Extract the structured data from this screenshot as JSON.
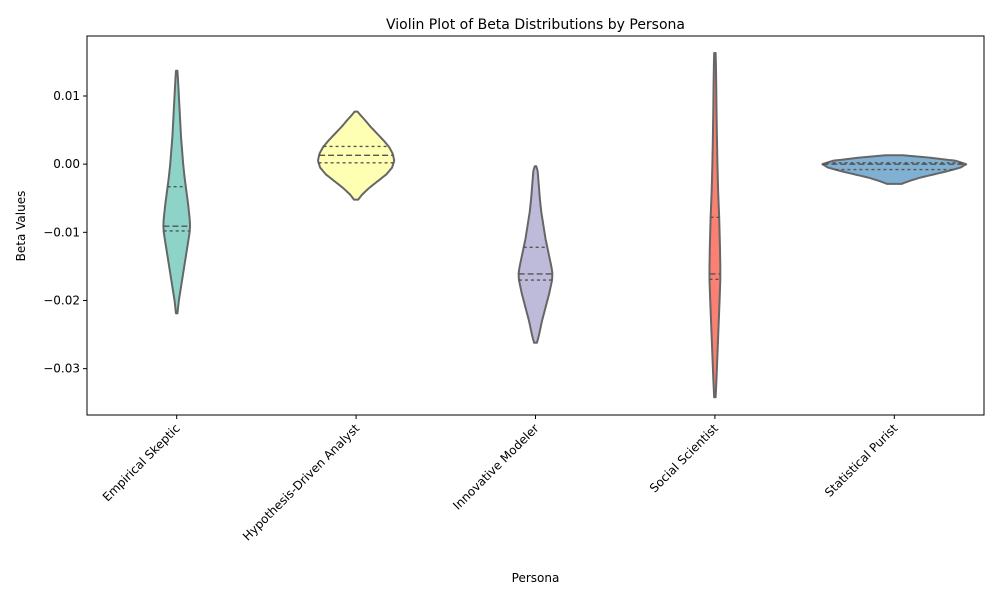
{
  "chart_data": {
    "type": "violin",
    "title": "Violin Plot of Beta Distributions by Persona",
    "xlabel": "Persona",
    "ylabel": "Beta Values",
    "ylim": [
      -0.0368,
      0.0188
    ],
    "yticks": [
      0.01,
      0.0,
      -0.01,
      -0.02,
      -0.03
    ],
    "ytick_labels": [
      "0.01",
      "0.00",
      "−0.01",
      "−0.02",
      "−0.03"
    ],
    "grid": false,
    "inner": "quartile",
    "categories": [
      "Empirical Skeptic",
      "Hypothesis-Driven Analyst",
      "Innovative Modeler",
      "Social Scientist",
      "Statistical Purist"
    ],
    "violins": [
      {
        "category": "Empirical Skeptic",
        "color": "#8dd3c7",
        "quartiles": [
          -0.0098,
          -0.0091,
          -0.0033
        ],
        "profile": [
          [
            -0.0219,
            0.01
          ],
          [
            -0.02,
            0.03
          ],
          [
            -0.018,
            0.06
          ],
          [
            -0.016,
            0.09
          ],
          [
            -0.014,
            0.12
          ],
          [
            -0.012,
            0.15
          ],
          [
            -0.01,
            0.18
          ],
          [
            -0.009,
            0.185
          ],
          [
            -0.008,
            0.18
          ],
          [
            -0.006,
            0.16
          ],
          [
            -0.004,
            0.135
          ],
          [
            -0.002,
            0.11
          ],
          [
            0.0,
            0.09
          ],
          [
            0.002,
            0.075
          ],
          [
            0.004,
            0.06
          ],
          [
            0.006,
            0.05
          ],
          [
            0.008,
            0.04
          ],
          [
            0.01,
            0.03
          ],
          [
            0.012,
            0.02
          ],
          [
            0.0137,
            0.01
          ]
        ]
      },
      {
        "category": "Hypothesis-Driven Analyst",
        "color": "#ffffb3",
        "quartiles": [
          0.0002,
          0.0013,
          0.0026
        ],
        "profile": [
          [
            -0.0052,
            0.03
          ],
          [
            -0.0045,
            0.08
          ],
          [
            -0.0035,
            0.18
          ],
          [
            -0.0025,
            0.3
          ],
          [
            -0.0015,
            0.42
          ],
          [
            -0.0005,
            0.5
          ],
          [
            0.0005,
            0.53
          ],
          [
            0.0015,
            0.51
          ],
          [
            0.0025,
            0.46
          ],
          [
            0.0035,
            0.38
          ],
          [
            0.0045,
            0.29
          ],
          [
            0.0055,
            0.2
          ],
          [
            0.0065,
            0.12
          ],
          [
            0.0072,
            0.06
          ],
          [
            0.0077,
            0.02
          ]
        ]
      },
      {
        "category": "Innovative Modeler",
        "color": "#bebada",
        "quartiles": [
          -0.017,
          -0.0161,
          -0.0122
        ],
        "profile": [
          [
            -0.0262,
            0.02
          ],
          [
            -0.025,
            0.05
          ],
          [
            -0.023,
            0.09
          ],
          [
            -0.021,
            0.14
          ],
          [
            -0.019,
            0.19
          ],
          [
            -0.017,
            0.23
          ],
          [
            -0.016,
            0.235
          ],
          [
            -0.015,
            0.22
          ],
          [
            -0.013,
            0.18
          ],
          [
            -0.011,
            0.14
          ],
          [
            -0.009,
            0.11
          ],
          [
            -0.007,
            0.08
          ],
          [
            -0.005,
            0.06
          ],
          [
            -0.003,
            0.045
          ],
          [
            -0.001,
            0.03
          ],
          [
            -0.0003,
            0.01
          ]
        ]
      },
      {
        "category": "Social Scientist",
        "color": "#fb8072",
        "quartiles": [
          -0.0169,
          -0.0161,
          -0.0078
        ],
        "profile": [
          [
            -0.0342,
            0.01
          ],
          [
            -0.032,
            0.02
          ],
          [
            -0.028,
            0.035
          ],
          [
            -0.024,
            0.05
          ],
          [
            -0.02,
            0.065
          ],
          [
            -0.017,
            0.075
          ],
          [
            -0.015,
            0.075
          ],
          [
            -0.012,
            0.07
          ],
          [
            -0.008,
            0.06
          ],
          [
            -0.004,
            0.045
          ],
          [
            0.0,
            0.035
          ],
          [
            0.004,
            0.028
          ],
          [
            0.008,
            0.022
          ],
          [
            0.012,
            0.018
          ],
          [
            0.015,
            0.013
          ],
          [
            0.0163,
            0.01
          ]
        ]
      },
      {
        "category": "Statistical Purist",
        "color": "#80b1d3",
        "quartiles": [
          -0.0008,
          0.0,
          0.0002
        ],
        "profile": [
          [
            -0.0029,
            0.1
          ],
          [
            -0.0025,
            0.2
          ],
          [
            -0.002,
            0.35
          ],
          [
            -0.0015,
            0.55
          ],
          [
            -0.001,
            0.75
          ],
          [
            -0.0005,
            0.92
          ],
          [
            0.0,
            1.0
          ],
          [
            0.0005,
            0.85
          ],
          [
            0.001,
            0.45
          ],
          [
            0.0013,
            0.12
          ]
        ]
      }
    ]
  }
}
